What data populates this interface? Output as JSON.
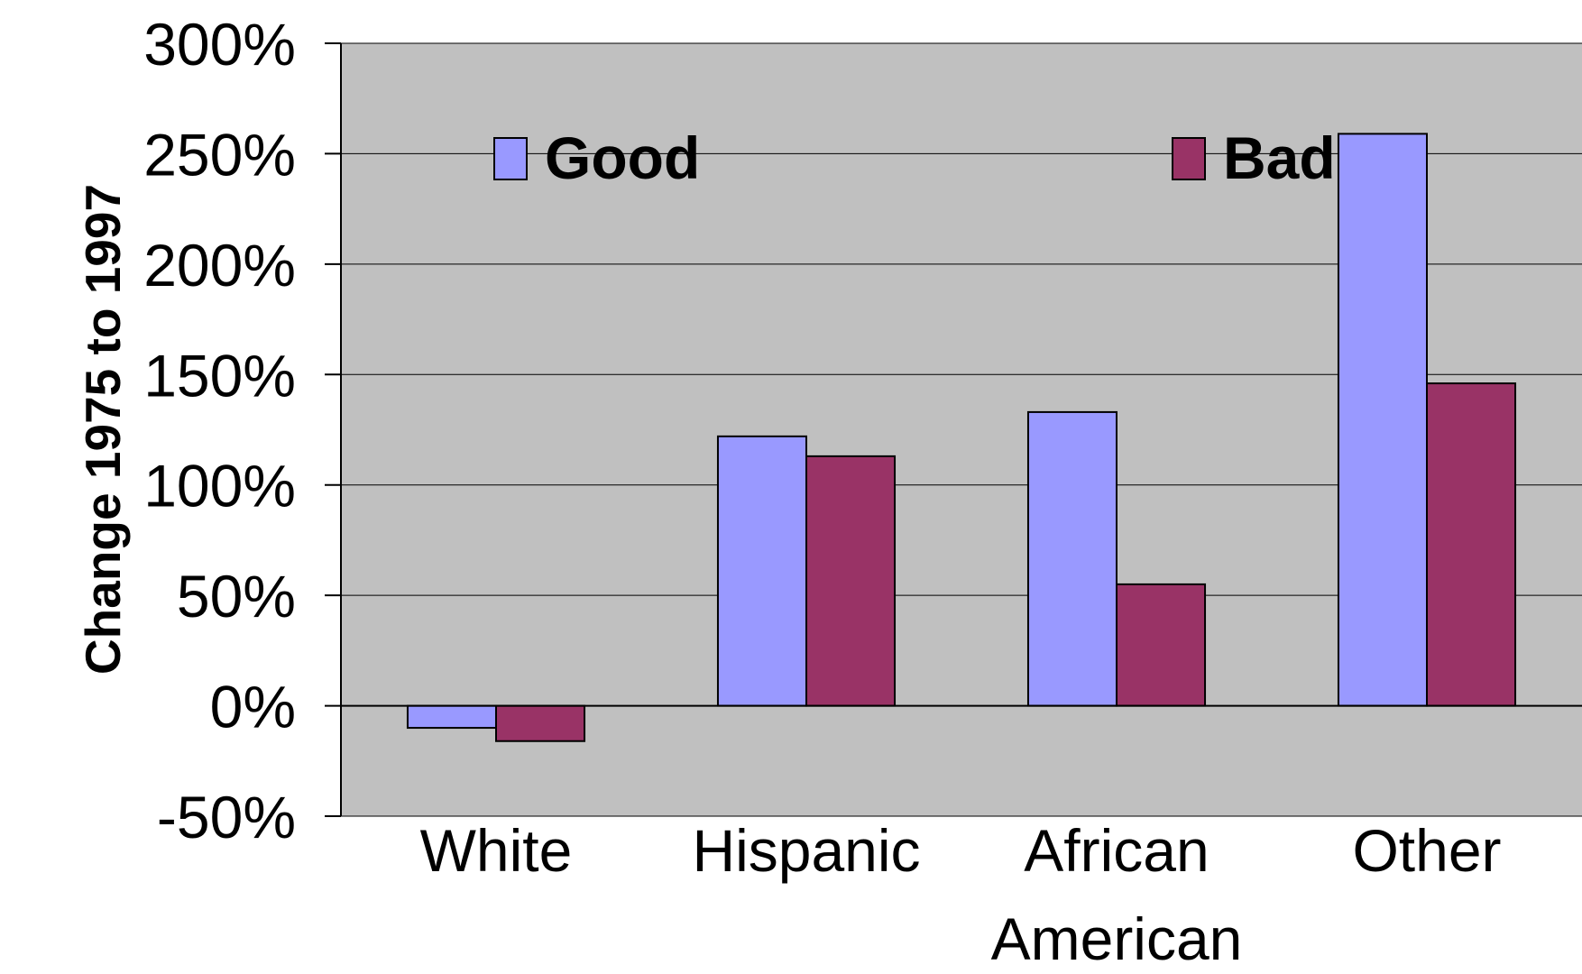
{
  "chart_data": {
    "type": "bar",
    "categories": [
      "White",
      "Hispanic",
      "African American",
      "Other"
    ],
    "category_lines": [
      [
        "White"
      ],
      [
        "Hispanic"
      ],
      [
        "African",
        "American"
      ],
      [
        "Other"
      ]
    ],
    "series": [
      {
        "name": "Good",
        "values": [
          -10,
          122,
          133,
          259
        ],
        "color": "#9999ff"
      },
      {
        "name": "Bad",
        "values": [
          -16,
          113,
          55,
          146
        ],
        "color": "#993366"
      }
    ],
    "title": "",
    "xlabel": "",
    "ylabel": "Change 1975 to 1997",
    "ylim": [
      -50,
      300
    ],
    "yticks": [
      -50,
      0,
      50,
      100,
      150,
      200,
      250,
      300
    ],
    "ytick_labels": [
      "-50%",
      "0%",
      "50%",
      "100%",
      "150%",
      "200%",
      "250%",
      "300%"
    ],
    "grid": true,
    "legend_position": "top",
    "plot_background": "#c0c0c0"
  }
}
